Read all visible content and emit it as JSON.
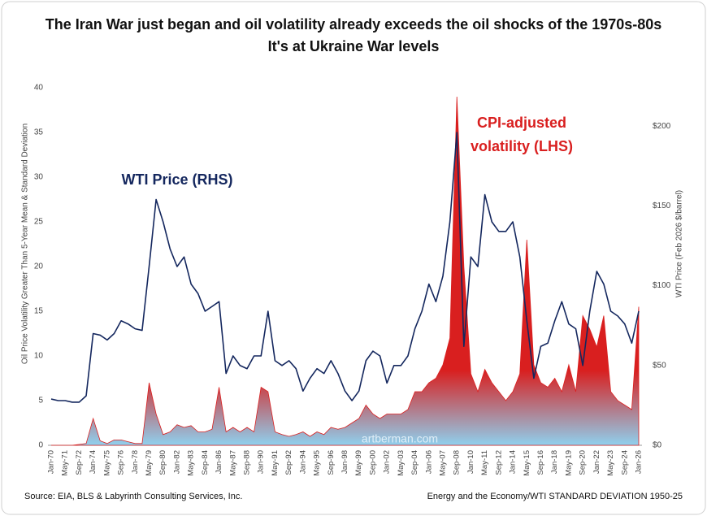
{
  "chart_data": {
    "type": "combo",
    "title": [
      "The Iran War just began and oil volatility already exceeds the oil shocks of the 1970s-80s",
      "It's at Ukraine War levels"
    ],
    "y_label": "Oil Price Volatility Greater Than 5-Year Mean & Standard Deviation",
    "y2_label": "WTI Price (Feb 2026 $/barrel)",
    "annotations": {
      "wti": "WTI Price (RHS)",
      "volatility": [
        "CPI-adjusted",
        "volatility (LHS)"
      ]
    },
    "watermark": "artberman.com",
    "source": "Source: EIA, BLS & Labyrinth Consulting Services, Inc.",
    "footer_right": "Energy and the Economy/WTI STANDARD DEVIATION 1950-25",
    "categories": [
      "Jan-70",
      null,
      "May-71",
      null,
      "Sep-72",
      null,
      "Jan-74",
      null,
      "May-75",
      null,
      "Sep-76",
      null,
      "Jan-78",
      null,
      "May-79",
      null,
      "Sep-80",
      null,
      "Jan-82",
      null,
      "May-83",
      null,
      "Sep-84",
      null,
      "Jan-86",
      null,
      "May-87",
      null,
      "Sep-88",
      null,
      "Jan-90",
      null,
      "May-91",
      null,
      "Sep-92",
      null,
      "Jan-94",
      null,
      "May-95",
      null,
      "Sep-96",
      null,
      "Jan-98",
      null,
      "May-99",
      null,
      "Sep-00",
      null,
      "Jan-02",
      null,
      "May-03",
      null,
      "Sep-04",
      null,
      "Jan-06",
      null,
      "May-07",
      null,
      "Sep-08",
      null,
      "Jan-10",
      null,
      "May-11",
      null,
      "Sep-12",
      null,
      "Jan-14",
      null,
      "May-15",
      null,
      "Sep-16",
      null,
      "Jan-18",
      null,
      "May-19",
      null,
      "Sep-20",
      null,
      "Jan-22",
      null,
      "May-23",
      null,
      "Sep-24",
      null,
      "Jan-26"
    ],
    "series": [
      {
        "name": "CPI-adjusted volatility",
        "type": "area",
        "axis": "y",
        "color": "#d91f1f",
        "fill_bottom_color": "#8fd0ee",
        "values": [
          0,
          0,
          0,
          0,
          0.1,
          0.2,
          3.0,
          0.5,
          0.2,
          0.6,
          0.6,
          0.4,
          0.2,
          0.2,
          7.0,
          3.5,
          1.2,
          1.5,
          2.3,
          2.0,
          2.2,
          1.5,
          1.5,
          1.8,
          6.5,
          1.5,
          2.0,
          1.5,
          2.0,
          1.5,
          6.5,
          6.0,
          1.5,
          1.2,
          1.0,
          1.2,
          1.5,
          1.0,
          1.5,
          1.2,
          2.0,
          1.8,
          2.0,
          2.5,
          3.0,
          4.5,
          3.5,
          3.0,
          3.5,
          3.5,
          3.5,
          4.0,
          6.0,
          6.0,
          7.0,
          7.5,
          9.0,
          12,
          39,
          20,
          8.0,
          6.0,
          8.5,
          7.0,
          6.0,
          5.0,
          6.0,
          8.0,
          23,
          9.0,
          7.0,
          6.5,
          7.5,
          6.0,
          9.0,
          6.0,
          14.5,
          13,
          11,
          14.5,
          6.0,
          5.0,
          4.5,
          4.0,
          15.5
        ]
      },
      {
        "name": "WTI Price",
        "type": "line",
        "axis": "y2",
        "color": "#14275e",
        "values": [
          29,
          28,
          28,
          27,
          27,
          31,
          70,
          69,
          66,
          70,
          78,
          76,
          73,
          72,
          112,
          154,
          140,
          123,
          112,
          118,
          101,
          95,
          84,
          87,
          90,
          45,
          56,
          50,
          48,
          56,
          56,
          84,
          53,
          50,
          53,
          48,
          34,
          42,
          48,
          45,
          53,
          45,
          34,
          28,
          34,
          53,
          59,
          56,
          39,
          50,
          50,
          56,
          73,
          84,
          101,
          90,
          106,
          140,
          196,
          62,
          118,
          112,
          157,
          140,
          134,
          134,
          140,
          118,
          78,
          42,
          62,
          64,
          78,
          90,
          76,
          73,
          50,
          84,
          109,
          101,
          84,
          81,
          76,
          64,
          84
        ]
      }
    ],
    "ylim": [
      0,
      40
    ],
    "yticks": [
      0,
      5,
      10,
      15,
      20,
      25,
      30,
      35,
      40
    ],
    "y2lim": [
      0,
      224
    ],
    "y2ticks": [
      {
        "value": 0,
        "label": "$0"
      },
      {
        "value": 50,
        "label": "$50"
      },
      {
        "value": 100,
        "label": "$100"
      },
      {
        "value": 150,
        "label": "$150"
      },
      {
        "value": 200,
        "label": "$200"
      }
    ],
    "grid": false
  }
}
